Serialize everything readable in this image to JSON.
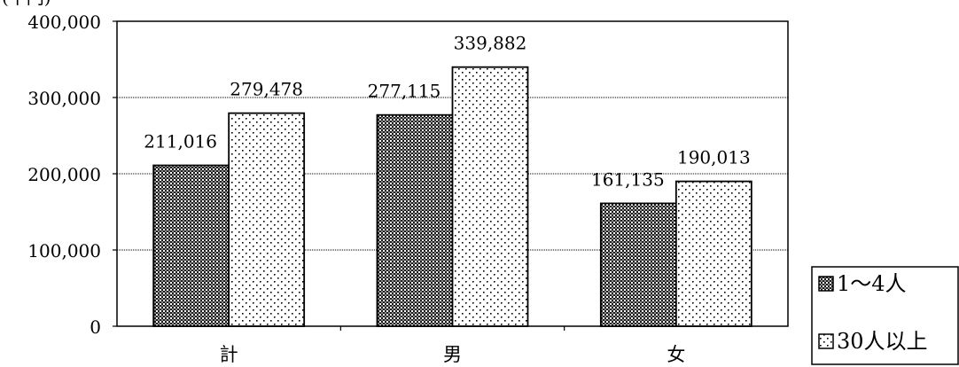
{
  "chart_data": {
    "type": "bar",
    "ylabel": "(千円)",
    "ylim": [
      0,
      400000
    ],
    "yticks": [
      "0",
      "100,000",
      "200,000",
      "300,000",
      "400,000"
    ],
    "categories": [
      "計",
      "男",
      "女"
    ],
    "series": [
      {
        "name": "1～4人",
        "values": [
          211016,
          277115,
          161135
        ],
        "labels": [
          "211,016",
          "277,115",
          "161,135"
        ],
        "pattern": "dense-dots"
      },
      {
        "name": "30人以上",
        "values": [
          279478,
          339882,
          190013
        ],
        "labels": [
          "279,478",
          "339,882",
          "190,013"
        ],
        "pattern": "sparse-dots"
      }
    ],
    "grid": true,
    "legend_position": "bottom-right"
  }
}
